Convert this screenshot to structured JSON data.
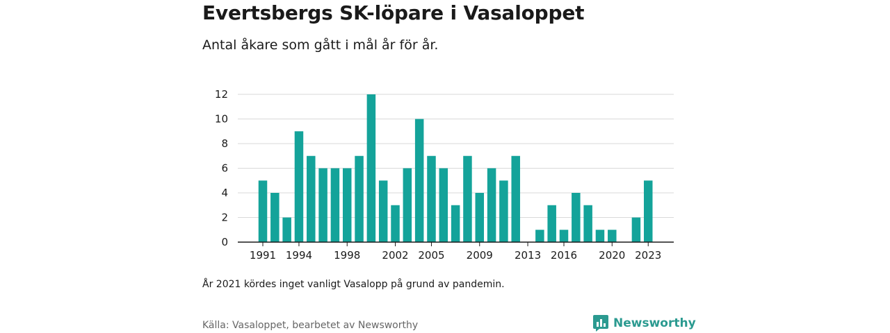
{
  "header": {
    "title": "Evertsbergs SK-löpare i Vasaloppet",
    "subtitle": "Antal åkare som gått i mål år för år."
  },
  "note": "År 2021 kördes inget vanligt Vasalopp på grund av pandemin.",
  "footer": {
    "source": "Källa: Vasaloppet, bearbetet av Newsworthy",
    "brand": "Newsworthy",
    "brand_icon": "newsworthy-logo-icon",
    "brand_color": "#2b9a90"
  },
  "colors": {
    "bar": "#14a39a",
    "grid": "#d9d9d9",
    "axis": "#1a1a1a"
  },
  "chart_data": {
    "type": "bar",
    "x": [
      1991,
      1992,
      1993,
      1994,
      1995,
      1996,
      1997,
      1998,
      1999,
      2000,
      2001,
      2002,
      2003,
      2004,
      2005,
      2006,
      2007,
      2008,
      2009,
      2010,
      2011,
      2012,
      2013,
      2014,
      2015,
      2016,
      2017,
      2018,
      2019,
      2020,
      2021,
      2022,
      2023
    ],
    "values": [
      5,
      4,
      2,
      9,
      7,
      6,
      6,
      6,
      7,
      12,
      5,
      3,
      6,
      10,
      7,
      6,
      3,
      7,
      4,
      6,
      5,
      7,
      0,
      1,
      3,
      1,
      4,
      3,
      1,
      1,
      0,
      2,
      5
    ],
    "x_tick_labels": [
      "1991",
      "1994",
      "1998",
      "2002",
      "2005",
      "2009",
      "2013",
      "2016",
      "2020",
      "2023"
    ],
    "y_ticks": [
      0,
      2,
      4,
      6,
      8,
      10,
      12
    ],
    "ylim": [
      0,
      12
    ],
    "xlabel": "",
    "ylabel": "",
    "grid": true,
    "legend": "none"
  }
}
